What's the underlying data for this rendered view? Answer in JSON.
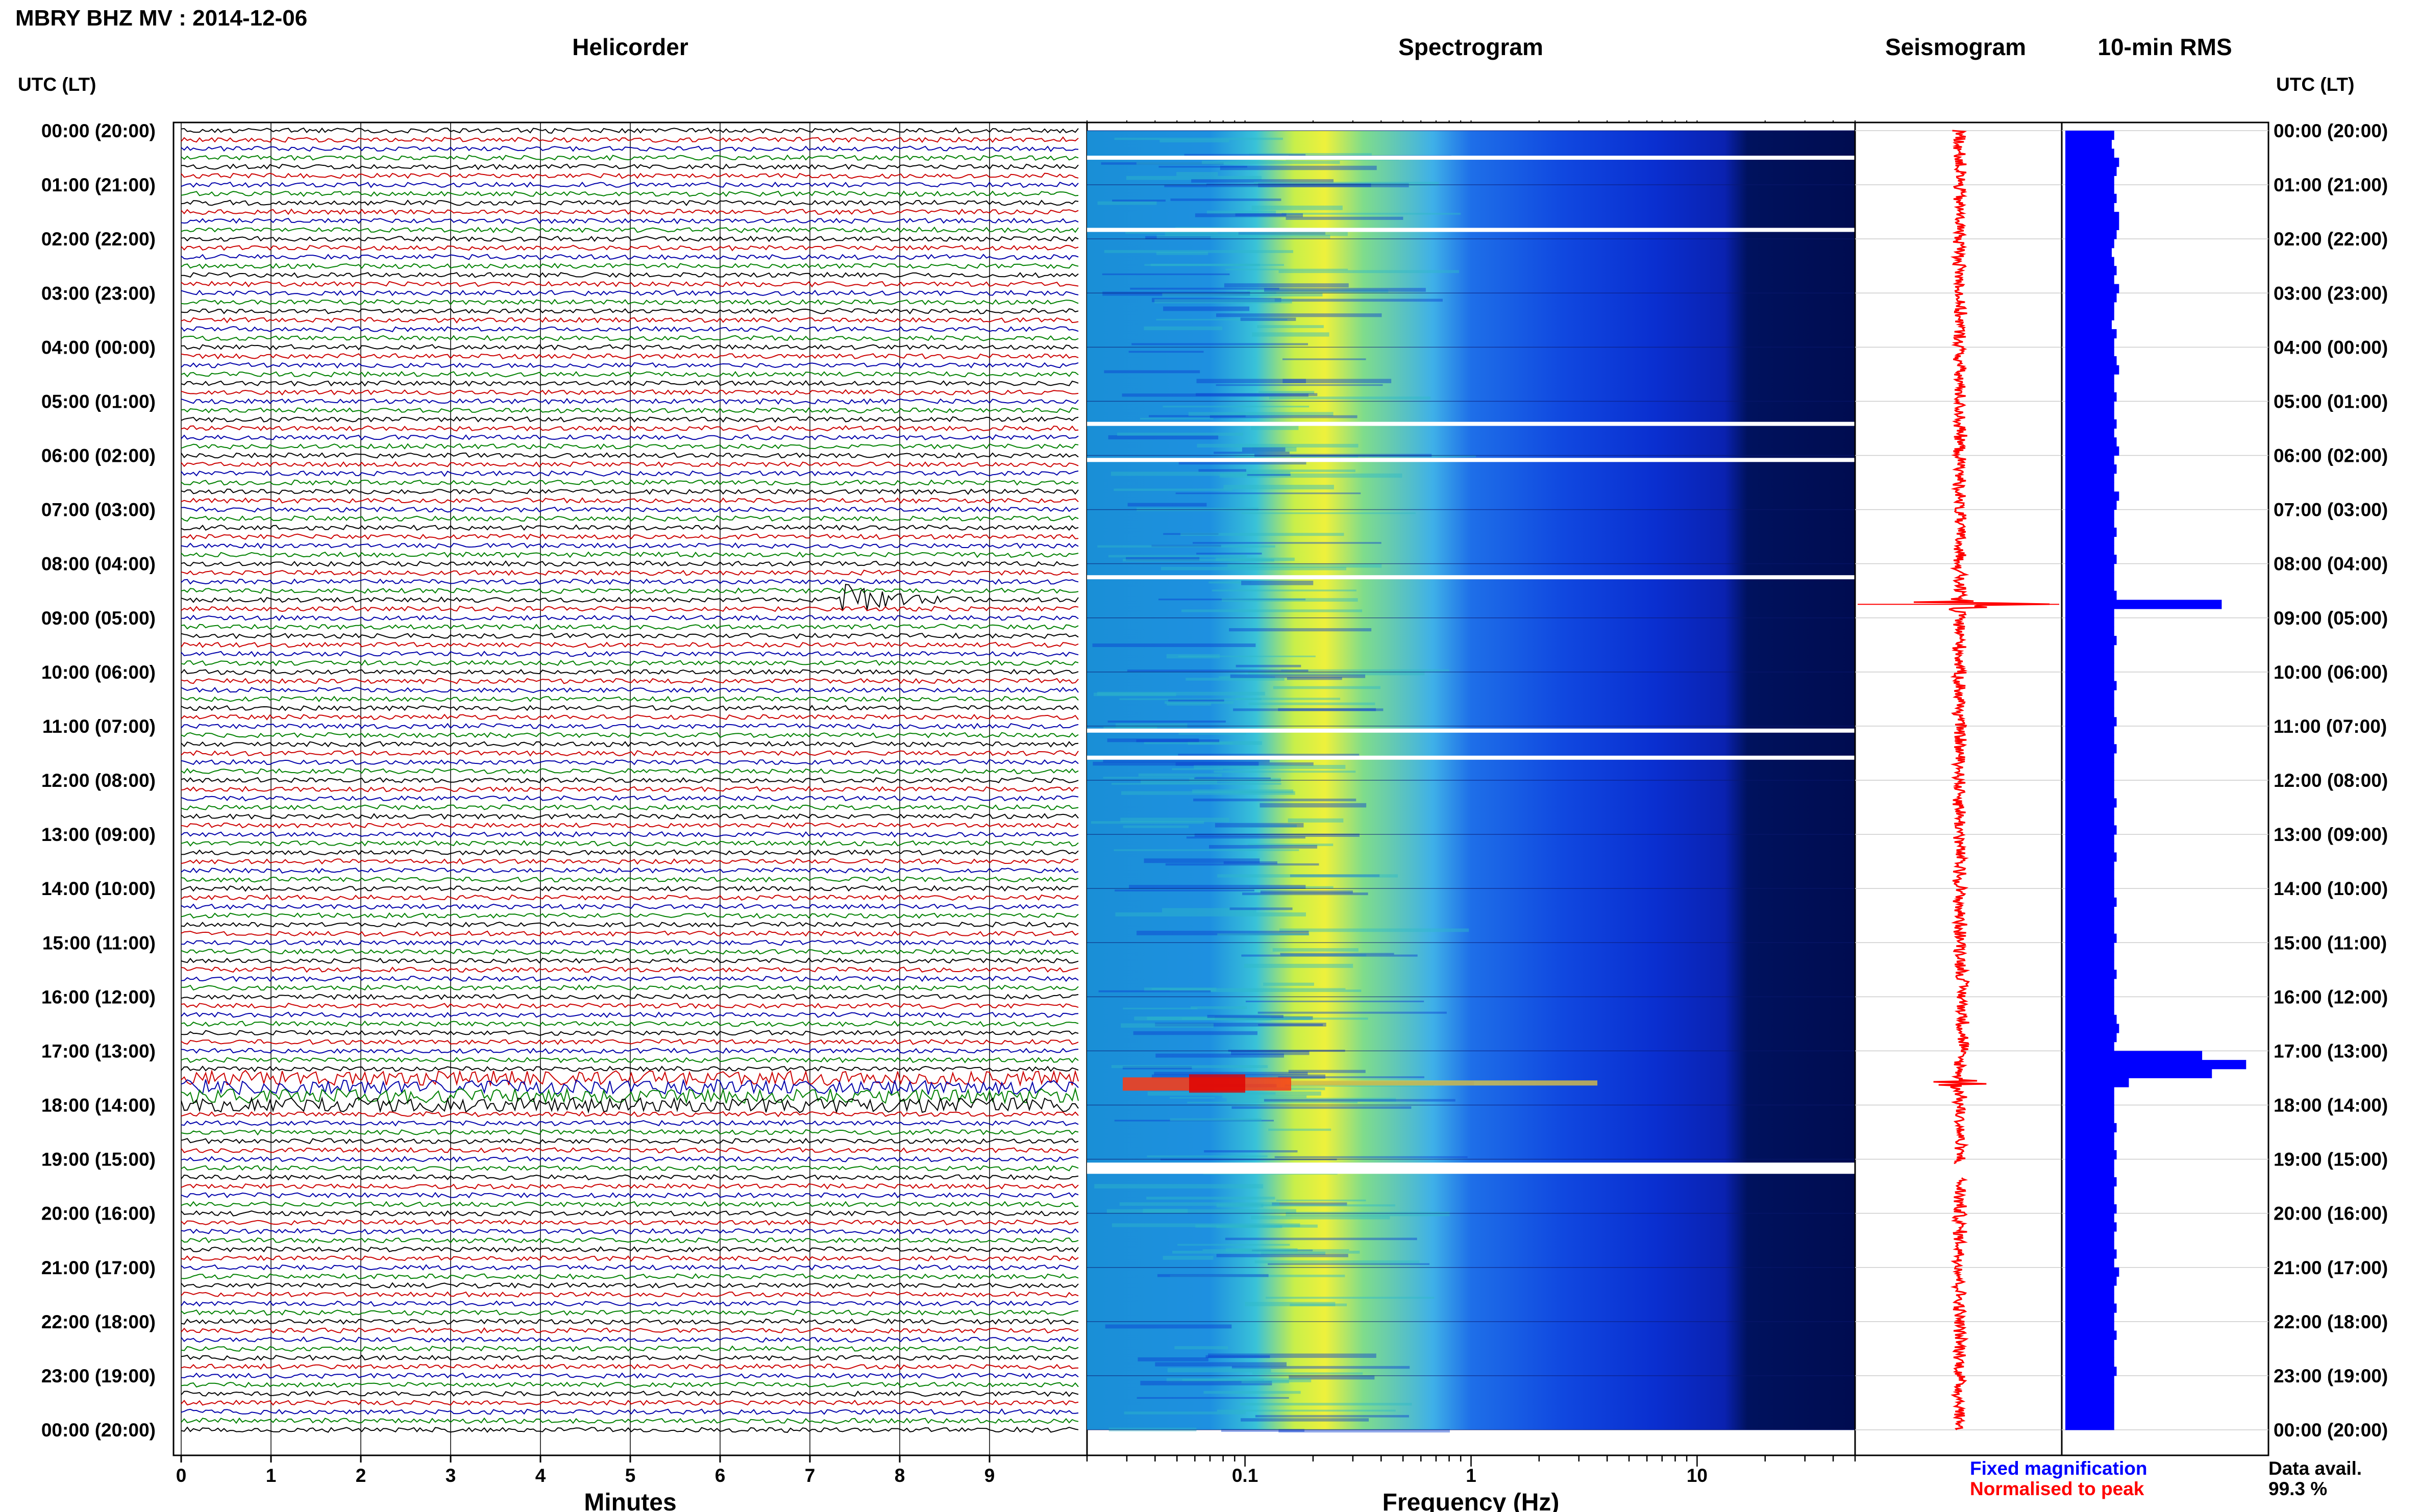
{
  "header": {
    "title": "MBRY BHZ MV : 2014-12-06"
  },
  "panels": {
    "helicorder": "Helicorder",
    "spectrogram": "Spectrogram",
    "seismogram": "Seismogram",
    "rms": "10-min RMS"
  },
  "time_axis": {
    "label": "UTC (LT)",
    "ticks": [
      "00:00 (20:00)",
      "01:00 (21:00)",
      "02:00 (22:00)",
      "03:00 (23:00)",
      "04:00 (00:00)",
      "05:00 (01:00)",
      "06:00 (02:00)",
      "07:00 (03:00)",
      "08:00 (04:00)",
      "09:00 (05:00)",
      "10:00 (06:00)",
      "11:00 (07:00)",
      "12:00 (08:00)",
      "13:00 (09:00)",
      "14:00 (10:00)",
      "15:00 (11:00)",
      "16:00 (12:00)",
      "17:00 (13:00)",
      "18:00 (14:00)",
      "19:00 (15:00)",
      "20:00 (16:00)",
      "21:00 (17:00)",
      "22:00 (18:00)",
      "23:00 (19:00)",
      "00:00 (20:00)"
    ]
  },
  "legend": {
    "fixed": "Fixed magnification",
    "normalised": "Normalised to peak",
    "fixed_color": "#0000ff",
    "normalised_color": "#ff0000",
    "data_avail_label": "Data avail.",
    "data_avail_value": "99.3 %"
  },
  "colors": {
    "helicorder_traces": [
      "#000000",
      "#cc0000",
      "#0000aa",
      "#008000"
    ],
    "rms_bar": "#0000ff",
    "seismogram_trace": "#ff0000"
  },
  "chart_data": [
    {
      "type": "line",
      "panel": "helicorder",
      "xlabel": "Minutes",
      "x_ticks": [
        0,
        1,
        2,
        3,
        4,
        5,
        6,
        7,
        8,
        9
      ],
      "xlim": [
        0,
        10
      ],
      "lines_per_hour": 6,
      "events": [
        {
          "utc": "08:40",
          "minute_start": 7.3,
          "minute_end": 8.2,
          "label": ""
        },
        {
          "utc": "17:30",
          "minute_start": 6.7,
          "minute_end": 7.3,
          "label": ""
        }
      ]
    },
    {
      "type": "heatmap",
      "panel": "spectrogram",
      "xlabel": "Frequency (Hz)",
      "x_scale": "log",
      "x_ticks": [
        "0.1",
        "1",
        "10"
      ],
      "xlim": [
        0.02,
        50
      ],
      "gaps_utc": [
        "00:30",
        "01:50",
        "05:25",
        "06:05",
        "08:15",
        "11:05",
        "11:35",
        "19:10"
      ],
      "energy_burst_utc": "17:35"
    },
    {
      "type": "line",
      "panel": "seismogram",
      "series": [
        {
          "name": "Normalised to peak"
        }
      ],
      "spikes_utc": [
        "08:45",
        "17:35"
      ],
      "gap_utc": [
        "19:05",
        "19:20"
      ]
    },
    {
      "type": "bar",
      "panel": "rms",
      "orientation": "horizontal",
      "interval_minutes": 10,
      "series": [
        {
          "name": "Fixed magnification",
          "values": [
            1.0,
            0.95,
            1.0,
            1.1,
            1.05,
            1.0,
            1.0,
            1.05,
            1.0,
            1.1,
            1.1,
            1.05,
            1.0,
            0.95,
            1.0,
            1.05,
            1.0,
            1.1,
            1.05,
            1.0,
            1.0,
            0.95,
            1.05,
            1.0,
            1.0,
            1.05,
            1.1,
            1.0,
            1.0,
            1.05,
            1.0,
            1.0,
            1.05,
            1.0,
            1.05,
            1.1,
            1.0,
            1.05,
            1.0,
            1.0,
            1.1,
            1.05,
            1.0,
            1.0,
            1.05,
            1.0,
            1.0,
            1.05,
            1.0,
            1.0,
            1.0,
            1.05,
            3.2,
            1.0,
            1.0,
            1.0,
            1.05,
            1.0,
            1.0,
            1.0,
            1.0,
            1.05,
            1.0,
            1.0,
            1.0,
            1.05,
            1.0,
            1.0,
            1.05,
            1.0,
            1.0,
            1.0,
            1.0,
            1.0,
            1.05,
            1.0,
            1.0,
            1.05,
            1.0,
            1.0,
            1.05,
            1.0,
            1.0,
            1.0,
            1.0,
            1.05,
            1.0,
            1.0,
            1.0,
            1.05,
            1.0,
            1.0,
            1.0,
            1.05,
            1.0,
            1.0,
            1.0,
            1.0,
            1.05,
            1.1,
            1.05,
            1.0,
            2.8,
            3.7,
            3.0,
            1.3,
            1.0,
            1.0,
            1.0,
            1.0,
            1.05,
            1.0,
            1.0,
            1.05,
            1.0,
            1.0,
            1.05,
            1.0,
            1.0,
            1.05,
            1.0,
            1.05,
            1.0,
            1.0,
            1.05,
            1.0,
            1.1,
            1.05,
            1.0,
            1.0,
            1.05,
            1.0,
            1.0,
            1.05,
            1.0,
            1.0,
            1.0,
            1.05,
            1.0,
            1.0,
            1.0,
            1.0,
            1.0,
            1.0
          ]
        }
      ]
    }
  ]
}
